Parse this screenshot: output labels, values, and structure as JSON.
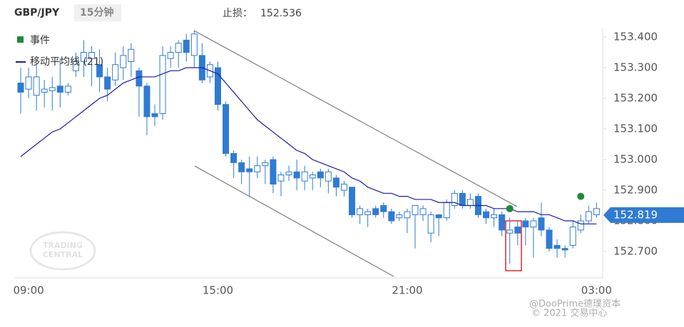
{
  "chart_data": {
    "type": "candlestick",
    "title": "GBP/JPY",
    "interval": "15分钟",
    "stop_loss_label": "止损：",
    "stop_loss": 152.536,
    "current_price": 152.819,
    "watermark_logo": [
      "TRADING",
      "CENTRAL"
    ],
    "watermark_source": "@DooPrime德璞资本",
    "watermark_copyright": "© 2021 交易中心",
    "categories": [
      null,
      "09:00",
      null,
      null,
      null,
      null,
      null,
      null,
      null,
      null,
      null,
      null,
      null,
      null,
      null,
      null,
      null,
      null,
      null,
      null,
      null,
      null,
      null,
      null,
      null,
      "15:00",
      null,
      null,
      null,
      null,
      null,
      null,
      null,
      null,
      null,
      null,
      null,
      null,
      null,
      null,
      null,
      null,
      null,
      null,
      null,
      null,
      null,
      null,
      null,
      "21:00",
      null,
      null,
      null,
      null,
      null,
      null,
      null,
      null,
      null,
      null,
      null,
      null,
      null,
      null,
      null,
      null,
      null,
      null,
      null,
      null,
      null,
      null,
      null,
      "03:00"
    ],
    "open": [
      153.25,
      153.23,
      153.21,
      153.22,
      153.225,
      153.24,
      153.22,
      153.29,
      153.32,
      153.33,
      153.31,
      153.27,
      153.26,
      153.3,
      153.32,
      153.29,
      153.24,
      153.15,
      153.15,
      153.33,
      153.35,
      153.39,
      153.34,
      153.34,
      153.27,
      153.3,
      153.18,
      153.02,
      152.99,
      152.97,
      152.96,
      152.98,
      153.0,
      152.93,
      152.95,
      152.96,
      152.93,
      152.94,
      152.96,
      152.93,
      152.94,
      152.9,
      152.91,
      152.82,
      152.82,
      152.84,
      152.85,
      152.83,
      152.81,
      152.81,
      152.82,
      152.82,
      152.76,
      152.82,
      152.81,
      152.85,
      152.89,
      152.85,
      152.88,
      152.83,
      152.81,
      152.82,
      152.76,
      152.78,
      152.8,
      152.78,
      152.81,
      152.77,
      152.72,
      152.71,
      152.72,
      152.77,
      152.8,
      152.82
    ],
    "high": [
      153.3,
      153.3,
      153.31,
      153.26,
      153.27,
      153.33,
      153.25,
      153.35,
      153.39,
      153.37,
      153.36,
      153.3,
      153.35,
      153.37,
      153.38,
      153.3,
      153.25,
      153.18,
      153.37,
      153.37,
      153.39,
      153.41,
      153.42,
      153.38,
      153.32,
      153.32,
      153.19,
      153.03,
      153.0,
      153.01,
      153.01,
      153.0,
      153.01,
      152.96,
      152.98,
      153.0,
      152.98,
      152.96,
      152.97,
      152.97,
      152.95,
      152.93,
      152.91,
      152.85,
      152.84,
      152.85,
      152.86,
      152.84,
      152.83,
      152.84,
      152.85,
      152.85,
      152.83,
      152.82,
      152.87,
      152.9,
      152.9,
      152.89,
      152.89,
      152.84,
      152.84,
      152.83,
      152.81,
      152.8,
      152.81,
      152.81,
      152.86,
      152.78,
      152.74,
      152.72,
      152.8,
      152.82,
      152.85,
      152.86
    ],
    "low": [
      153.15,
      153.2,
      153.16,
      153.17,
      153.16,
      153.17,
      153.21,
      153.27,
      153.27,
      153.24,
      153.22,
      153.19,
      153.24,
      153.26,
      153.27,
      153.14,
      153.08,
      153.11,
      153.13,
      153.3,
      153.3,
      153.32,
      153.3,
      153.25,
      153.25,
      153.16,
      153.01,
      152.94,
      152.92,
      152.88,
      152.94,
      152.92,
      152.89,
      152.88,
      152.93,
      152.9,
      152.9,
      152.9,
      152.91,
      152.89,
      152.88,
      152.88,
      152.81,
      152.79,
      152.78,
      152.81,
      152.81,
      152.79,
      152.8,
      152.76,
      152.71,
      152.8,
      152.73,
      152.75,
      152.8,
      152.84,
      152.84,
      152.84,
      152.81,
      152.79,
      152.78,
      152.75,
      152.66,
      152.72,
      152.72,
      152.68,
      152.75,
      152.7,
      152.68,
      152.68,
      152.71,
      152.76,
      152.79,
      152.81
    ],
    "close": [
      153.22,
      153.27,
      153.27,
      153.23,
      153.235,
      153.22,
      153.24,
      153.32,
      153.35,
      153.35,
      153.27,
      153.23,
      153.31,
      153.34,
      153.36,
      153.24,
      153.14,
      153.14,
      153.34,
      153.35,
      153.38,
      153.35,
      153.41,
      153.26,
      153.31,
      153.18,
      153.02,
      152.99,
      152.96,
      152.96,
      152.98,
      152.99,
      152.92,
      152.95,
      152.96,
      152.94,
      152.96,
      152.95,
      152.94,
      152.96,
      152.91,
      152.92,
      152.82,
      152.84,
      152.83,
      152.82,
      152.83,
      152.8,
      152.82,
      152.83,
      152.85,
      152.84,
      152.82,
      152.81,
      152.86,
      152.89,
      152.85,
      152.87,
      152.82,
      152.81,
      152.82,
      152.77,
      152.77,
      152.76,
      152.78,
      152.8,
      152.77,
      152.71,
      152.71,
      152.705,
      152.78,
      152.8,
      152.83,
      152.84
    ],
    "up_color": "#ffffff",
    "down_color": "#2f7bd3",
    "edge_color": "#2f7bd3",
    "series": [
      {
        "name": "移动平均线 (21)",
        "color": "#1c1ca8",
        "values": [
          153.01,
          153.03,
          153.05,
          153.07,
          153.09,
          153.1,
          153.12,
          153.14,
          153.16,
          153.18,
          153.2,
          153.21,
          153.23,
          153.25,
          153.26,
          153.27,
          153.27,
          153.27,
          153.28,
          153.29,
          153.29,
          153.3,
          153.3,
          153.3,
          153.29,
          153.28,
          153.25,
          153.22,
          153.19,
          153.16,
          153.13,
          153.11,
          153.09,
          153.07,
          153.05,
          153.03,
          153.02,
          153.0,
          152.99,
          152.98,
          152.97,
          152.96,
          152.94,
          152.93,
          152.91,
          152.9,
          152.89,
          152.89,
          152.88,
          152.88,
          152.87,
          152.87,
          152.87,
          152.86,
          152.86,
          152.86,
          152.85,
          152.85,
          152.85,
          152.85,
          152.84,
          152.84,
          152.84,
          152.83,
          152.83,
          152.83,
          152.82,
          152.82,
          152.81,
          152.8,
          152.8,
          152.79,
          152.79,
          152.79
        ]
      }
    ],
    "events": {
      "name": "事件",
      "color": "#1e8a3c",
      "values": [
        null,
        null,
        null,
        null,
        null,
        null,
        null,
        null,
        null,
        null,
        null,
        null,
        null,
        null,
        null,
        null,
        null,
        null,
        null,
        null,
        null,
        null,
        null,
        null,
        null,
        null,
        null,
        null,
        null,
        null,
        null,
        null,
        null,
        null,
        null,
        null,
        null,
        null,
        null,
        null,
        null,
        null,
        null,
        null,
        null,
        null,
        null,
        null,
        null,
        null,
        null,
        null,
        null,
        null,
        null,
        null,
        null,
        null,
        null,
        null,
        null,
        null,
        152.84,
        null,
        null,
        null,
        null,
        null,
        null,
        null,
        null,
        152.88,
        null,
        null
      ]
    },
    "ylim": [
      152.614,
      153.428
    ],
    "yticks": [
      {
        "value": 152.7,
        "label": "152.700"
      },
      {
        "value": 152.8,
        "label": "152.800"
      },
      {
        "value": 152.9,
        "label": "152.900"
      },
      {
        "value": 153.0,
        "label": "153.000"
      },
      {
        "value": 153.1,
        "label": "153.100"
      },
      {
        "value": 153.2,
        "label": "153.200"
      },
      {
        "value": 153.3,
        "label": "153.300"
      },
      {
        "value": 153.4,
        "label": "153.400"
      }
    ],
    "grid": false
  }
}
